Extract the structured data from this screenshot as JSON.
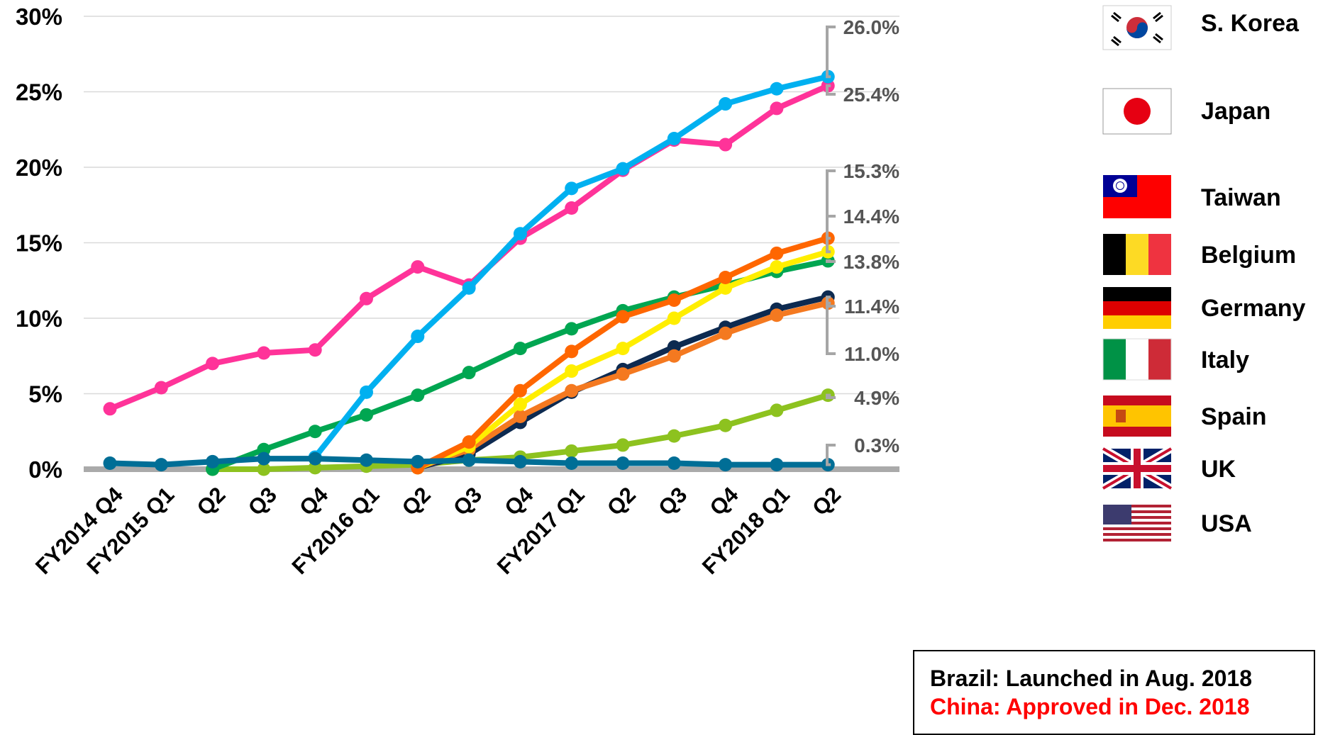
{
  "chart_data": {
    "type": "line",
    "title": "",
    "xlabel": "",
    "ylabel": "",
    "ylim": [
      0,
      30
    ],
    "y_ticks": [
      "0%",
      "5%",
      "10%",
      "15%",
      "20%",
      "25%",
      "30%"
    ],
    "grid": true,
    "legend_placement": "right",
    "categories": [
      "FY2014 Q4",
      "FY2015 Q1",
      "Q2",
      "Q3",
      "Q4",
      "FY2016 Q1",
      "Q2",
      "Q3",
      "Q4",
      "FY2017 Q1",
      "Q2",
      "Q3",
      "Q4",
      "FY2018 Q1",
      "Q2"
    ],
    "series": [
      {
        "name": "S. Korea",
        "color": "#00b0f0",
        "values": [
          null,
          null,
          null,
          null,
          0.8,
          5.1,
          8.8,
          12.0,
          15.6,
          18.6,
          19.9,
          21.9,
          24.2,
          25.2,
          26.0
        ],
        "end_label": "26.0%"
      },
      {
        "name": "Japan",
        "color": "#ff3399",
        "values": [
          4.0,
          5.4,
          7.0,
          7.7,
          7.9,
          11.3,
          13.4,
          12.2,
          15.3,
          17.3,
          19.8,
          21.8,
          21.5,
          23.9,
          25.4
        ],
        "end_label": "25.4%"
      },
      {
        "name": "Taiwan",
        "color": "#ff6600",
        "values": [
          null,
          null,
          null,
          null,
          null,
          null,
          0.1,
          1.8,
          5.2,
          7.8,
          10.1,
          11.2,
          12.7,
          14.3,
          15.3
        ],
        "end_label": "15.3%"
      },
      {
        "name": "Belgium",
        "color": "#ffee00",
        "values": [
          null,
          null,
          null,
          null,
          null,
          null,
          0.1,
          1.5,
          4.3,
          6.5,
          8.0,
          10.0,
          12.0,
          13.4,
          14.4
        ],
        "end_label": "14.4%"
      },
      {
        "name": "Germany",
        "color": "#00a651",
        "values": [
          null,
          null,
          0.0,
          1.3,
          2.5,
          3.6,
          4.9,
          6.4,
          8.0,
          9.3,
          10.5,
          11.4,
          12.2,
          13.1,
          13.8
        ],
        "end_label": "13.8%"
      },
      {
        "name": "Italy",
        "color": "#0d2a50",
        "values": [
          null,
          null,
          null,
          null,
          null,
          null,
          0.1,
          1.0,
          3.1,
          5.1,
          6.6,
          8.1,
          9.4,
          10.6,
          11.4
        ],
        "end_label": "11.4%"
      },
      {
        "name": "Spain",
        "color": "#f47920",
        "values": [
          null,
          null,
          null,
          null,
          null,
          null,
          0.1,
          1.3,
          3.5,
          5.2,
          6.3,
          7.5,
          9.0,
          10.2,
          11.0
        ],
        "end_label": "11.0%"
      },
      {
        "name": "UK",
        "color": "#8dc21f",
        "values": [
          null,
          null,
          0.0,
          0.0,
          0.1,
          0.2,
          0.3,
          0.6,
          0.8,
          1.2,
          1.6,
          2.2,
          2.9,
          3.9,
          4.9
        ],
        "end_label": "4.9%"
      },
      {
        "name": "USA",
        "color": "#006e96",
        "values": [
          0.4,
          0.3,
          0.5,
          0.7,
          0.7,
          0.6,
          0.5,
          0.6,
          0.5,
          0.4,
          0.4,
          0.4,
          0.3,
          0.3,
          0.3
        ],
        "end_label": "0.3%"
      }
    ],
    "legend": [
      {
        "name": "S. Korea",
        "flag": "korea-flag"
      },
      {
        "name": "Japan",
        "flag": "japan-flag"
      },
      {
        "name": "Taiwan",
        "flag": "taiwan-flag"
      },
      {
        "name": "Belgium",
        "flag": "belgium-flag"
      },
      {
        "name": "Germany",
        "flag": "germany-flag"
      },
      {
        "name": "Italy",
        "flag": "italy-flag"
      },
      {
        "name": "Spain",
        "flag": "spain-flag"
      },
      {
        "name": "UK",
        "flag": "uk-flag"
      },
      {
        "name": "USA",
        "flag": "usa-flag"
      }
    ]
  },
  "notes": {
    "brazil": "Brazil: Launched in Aug. 2018",
    "china": "China: Approved in Dec. 2018",
    "brazil_color": "#000000",
    "china_color": "#ff0000"
  }
}
